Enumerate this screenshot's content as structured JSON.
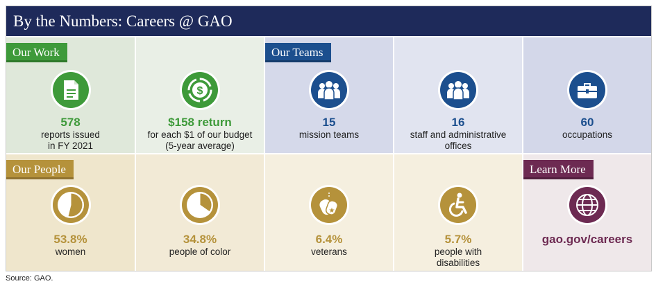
{
  "title": "By the Numbers: Careers @ GAO",
  "sections": {
    "work": "Our Work",
    "teams": "Our Teams",
    "people": "Our People",
    "learn": "Learn More"
  },
  "work": [
    {
      "stat": "578",
      "line1": "reports issued",
      "line2": "in FY 2021",
      "icon": "document-icon"
    },
    {
      "stat": "$158 return",
      "line1": "for each $1 of our budget",
      "line2": "(5-year average)",
      "icon": "dollar-cycle-icon"
    }
  ],
  "teams": [
    {
      "stat": "15",
      "line1": "mission teams",
      "line2": "",
      "icon": "group-icon"
    },
    {
      "stat": "16",
      "line1": "staff and administrative",
      "line2": "offices",
      "icon": "group-icon"
    },
    {
      "stat": "60",
      "line1": "occupations",
      "line2": "",
      "icon": "briefcase-icon"
    }
  ],
  "people": [
    {
      "stat": "53.8%",
      "line1": "women",
      "line2": "",
      "icon": "pie-icon",
      "fraction": 0.538
    },
    {
      "stat": "34.8%",
      "line1": "people of color",
      "line2": "",
      "icon": "pie-icon",
      "fraction": 0.348
    },
    {
      "stat": "6.4%",
      "line1": "veterans",
      "line2": "",
      "icon": "dog-tags-icon"
    },
    {
      "stat": "5.7%",
      "line1": "people with",
      "line2": "disabilities",
      "icon": "accessibility-icon"
    }
  ],
  "learn_more": {
    "link": "gao.gov/careers",
    "icon": "globe-icon"
  },
  "source": "Source: GAO.",
  "colors": {
    "navy": "#1e2a5a",
    "green": "#3e9a3a",
    "blue": "#1c4f8e",
    "gold": "#b5923b",
    "purple": "#6d2a52"
  }
}
